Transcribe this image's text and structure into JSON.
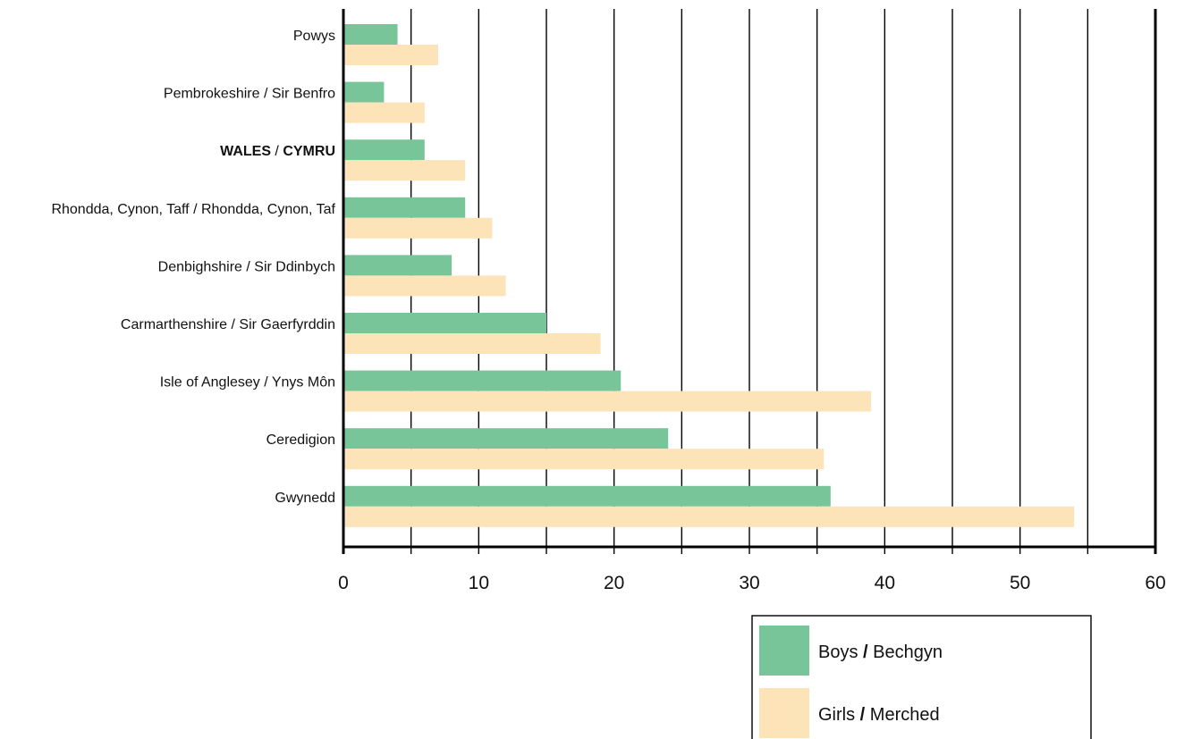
{
  "chart_data": {
    "type": "bar",
    "orientation": "horizontal",
    "title": "",
    "xlabel": "",
    "ylabel": "",
    "xlim": [
      0,
      60
    ],
    "x_ticks": [
      0,
      10,
      20,
      30,
      40,
      50,
      60
    ],
    "gridlines_every": 5,
    "grid": true,
    "categories": [
      {
        "name_part1": "Powys",
        "sep": "",
        "name_part2": "",
        "bold": false
      },
      {
        "name_part1": "Pembrokeshire",
        "sep": " / ",
        "name_part2": "Sir Benfro",
        "bold": false
      },
      {
        "name_part1": "WALES",
        "sep": " / ",
        "name_part2": "CYMRU",
        "bold": true
      },
      {
        "name_part1": "Rhondda, Cynon, Taff",
        "sep": " / ",
        "name_part2": "Rhondda, Cynon, Taf",
        "bold": false
      },
      {
        "name_part1": "Denbighshire",
        "sep": " / ",
        "name_part2": "Sir Ddinbych",
        "bold": false
      },
      {
        "name_part1": "Carmarthenshire",
        "sep": " / ",
        "name_part2": "Sir Gaerfyrddin",
        "bold": false
      },
      {
        "name_part1": "Isle of Anglesey",
        "sep": " / ",
        "name_part2": "Ynys Môn",
        "bold": false
      },
      {
        "name_part1": "Ceredigion",
        "sep": "",
        "name_part2": "",
        "bold": false
      },
      {
        "name_part1": "Gwynedd",
        "sep": "",
        "name_part2": "",
        "bold": false
      }
    ],
    "series": [
      {
        "legend_left": "Boys",
        "legend_sep": "/",
        "legend_right": "Bechgyn",
        "color": "#79c59a",
        "values": [
          4,
          3,
          6,
          9,
          8,
          15,
          20.5,
          24,
          36
        ]
      },
      {
        "legend_left": "Girls",
        "legend_sep": "/",
        "legend_right": "Merched",
        "color": "#fce3b8",
        "values": [
          7,
          6,
          9,
          11,
          12,
          19,
          39,
          35.5,
          54
        ]
      }
    ],
    "legend_position": "bottom-right"
  }
}
